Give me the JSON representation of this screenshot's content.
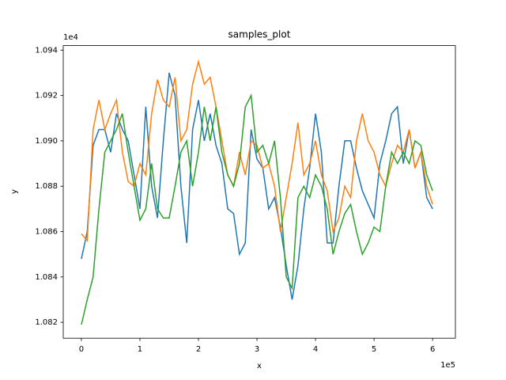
{
  "chart_data": {
    "type": "line",
    "title": "samples_plot",
    "x_label": "x",
    "y_label": "y",
    "x_offset_text": "1e5",
    "y_offset_text": "1e4",
    "x": [
      0,
      0.1,
      0.2,
      0.3,
      0.4,
      0.5,
      0.6,
      0.7,
      0.8,
      0.9,
      1.0,
      1.1,
      1.2,
      1.3,
      1.4,
      1.5,
      1.6,
      1.7,
      1.8,
      1.9,
      2.0,
      2.1,
      2.2,
      2.3,
      2.4,
      2.5,
      2.6,
      2.7,
      2.8,
      2.9,
      3.0,
      3.1,
      3.2,
      3.3,
      3.4,
      3.5,
      3.6,
      3.7,
      3.8,
      3.9,
      4.0,
      4.1,
      4.2,
      4.3,
      4.4,
      4.5,
      4.6,
      4.7,
      4.8,
      4.9,
      5.0,
      5.1,
      5.2,
      5.3,
      5.4,
      5.5,
      5.6,
      5.7,
      5.8,
      5.9,
      6.0
    ],
    "series": [
      {
        "color": "#1f77b4",
        "values": [
          1.0848,
          1.086,
          1.0898,
          1.0905,
          1.0905,
          1.0895,
          1.0912,
          1.0905,
          1.09,
          1.0885,
          1.087,
          1.0915,
          1.088,
          1.0866,
          1.09,
          1.093,
          1.092,
          1.088,
          1.0855,
          1.0905,
          1.0918,
          1.09,
          1.0912,
          1.0898,
          1.089,
          1.087,
          1.0868,
          1.085,
          1.0855,
          1.0905,
          1.0892,
          1.0888,
          1.087,
          1.0875,
          1.0862,
          1.0845,
          1.083,
          1.0845,
          1.087,
          1.0888,
          1.0912,
          1.0895,
          1.0855,
          1.0855,
          1.088,
          1.09,
          1.09,
          1.0888,
          1.0878,
          1.0872,
          1.0866,
          1.089,
          1.09,
          1.0912,
          1.0915,
          1.089,
          1.0905,
          1.0888,
          1.0895,
          1.0875,
          1.087
        ]
      },
      {
        "color": "#ff7f0e",
        "values": [
          1.0859,
          1.0856,
          1.0905,
          1.0918,
          1.0905,
          1.0912,
          1.0918,
          1.0895,
          1.0882,
          1.088,
          1.089,
          1.0885,
          1.0912,
          1.0927,
          1.0918,
          1.0915,
          1.0928,
          1.09,
          1.0905,
          1.0925,
          1.0935,
          1.0925,
          1.0928,
          1.0915,
          1.09,
          1.0885,
          1.088,
          1.0895,
          1.0885,
          1.09,
          1.0898,
          1.0888,
          1.089,
          1.088,
          1.086,
          1.0875,
          1.089,
          1.0908,
          1.0885,
          1.089,
          1.09,
          1.0885,
          1.0878,
          1.086,
          1.0866,
          1.088,
          1.0875,
          1.09,
          1.0912,
          1.09,
          1.0895,
          1.0885,
          1.088,
          1.089,
          1.0898,
          1.0895,
          1.0905,
          1.0888,
          1.0895,
          1.088,
          1.0872
        ]
      },
      {
        "color": "#2ca02c",
        "values": [
          1.0819,
          1.083,
          1.084,
          1.087,
          1.0895,
          1.09,
          1.0905,
          1.0912,
          1.0895,
          1.088,
          1.0865,
          1.087,
          1.089,
          1.087,
          1.0866,
          1.0866,
          1.088,
          1.0895,
          1.09,
          1.088,
          1.0895,
          1.0915,
          1.09,
          1.0915,
          1.0895,
          1.0885,
          1.088,
          1.089,
          1.0915,
          1.092,
          1.0895,
          1.0898,
          1.089,
          1.09,
          1.0875,
          1.084,
          1.0835,
          1.0875,
          1.088,
          1.0875,
          1.0885,
          1.088,
          1.087,
          1.085,
          1.086,
          1.0868,
          1.0872,
          1.086,
          1.085,
          1.0855,
          1.0862,
          1.086,
          1.088,
          1.0895,
          1.089,
          1.0895,
          1.089,
          1.09,
          1.0898,
          1.0885,
          1.0878
        ]
      }
    ],
    "xlim": [
      -0.31,
      6.39
    ],
    "xticks": [
      0,
      1,
      2,
      3,
      4,
      5,
      6
    ],
    "ylim": [
      1.0813,
      1.0942
    ],
    "yticks": [
      1.082,
      1.084,
      1.086,
      1.088,
      {
        "value": 1.09,
        "label": "1.090"
      },
      1.092,
      1.094
    ],
    "grid": false
  }
}
